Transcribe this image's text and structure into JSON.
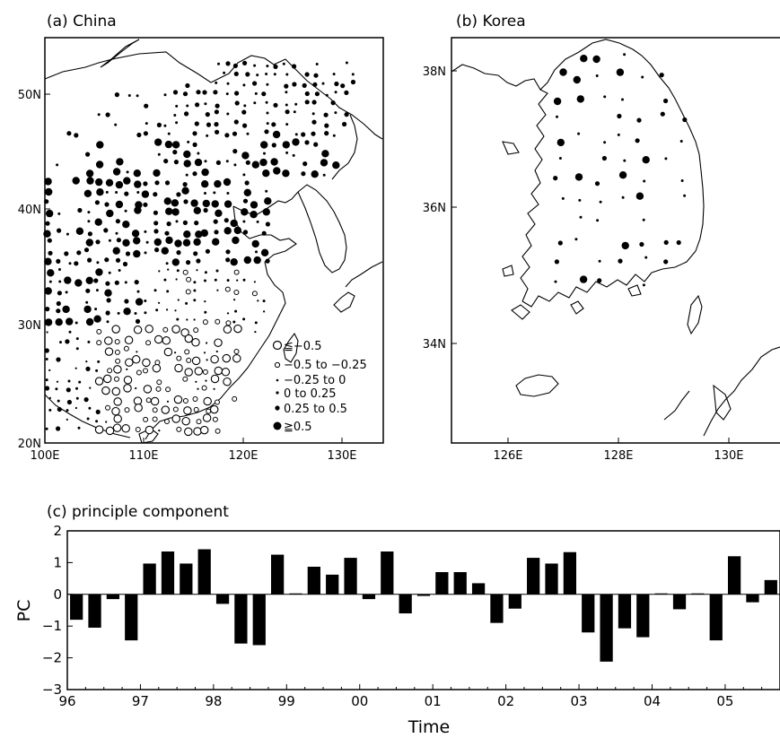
{
  "panel_a": {
    "title": "(a) China",
    "y_ticks": [
      "20N",
      "30N",
      "40N",
      "50N"
    ],
    "x_ticks": [
      "100E",
      "110E",
      "120E",
      "130E"
    ],
    "legend": [
      "≦−0.5",
      "−0.5  to  −0.25",
      "−0.25  to  0",
      "0  to  0.25",
      "0.25  to  0.5",
      "≧0.5"
    ]
  },
  "panel_b": {
    "title": "(b) Korea",
    "y_ticks": [
      "34N",
      "36N",
      "38N"
    ],
    "x_ticks": [
      "126E",
      "128E",
      "130E"
    ]
  },
  "chart_data": {
    "type": "bar",
    "title": "(c) principle component",
    "xlabel": "Time",
    "ylabel": "PC",
    "ylim": [
      -3,
      2
    ],
    "y_ticks": [
      "2",
      "1",
      "0",
      "−1",
      "−2",
      "−3"
    ],
    "x_tick_labels": [
      "96",
      "97",
      "98",
      "99",
      "00",
      "01",
      "02",
      "03",
      "04",
      "05"
    ],
    "values": [
      -0.8,
      -1.05,
      -0.15,
      -1.45,
      0.97,
      1.35,
      0.97,
      1.42,
      -0.3,
      -1.55,
      -1.6,
      1.25,
      0.03,
      0.87,
      0.62,
      1.15,
      -0.15,
      1.35,
      -0.6,
      -0.05,
      0.7,
      0.7,
      0.35,
      -0.9,
      -0.45,
      1.15,
      0.97,
      1.33,
      -1.2,
      -2.12,
      -1.07,
      -1.35,
      0.03,
      -0.47,
      0.03,
      -1.45,
      1.2,
      -0.25,
      0.45
    ]
  }
}
